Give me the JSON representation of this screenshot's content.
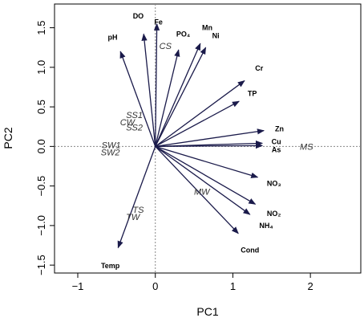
{
  "chart_data": {
    "type": "scatter",
    "title": "",
    "xlabel": "PC1",
    "ylabel": "PC2",
    "xlim": [
      -1.3,
      2.65
    ],
    "ylim": [
      -1.6,
      1.8
    ],
    "xticks": [
      -1,
      0,
      1,
      2
    ],
    "yticks": [
      -1.5,
      -1.0,
      -0.5,
      0.0,
      0.5,
      1.0,
      1.5
    ],
    "xtick_labels": [
      "−1",
      "0",
      "1",
      "2"
    ],
    "ytick_labels": [
      "−1.5",
      "−1.0",
      "−0.5",
      "0.0",
      "0.5",
      "1.0",
      "1.5"
    ],
    "grid": false,
    "reference_lines": [
      "x=0",
      "y=0"
    ],
    "arrow_color": "#1a1a4a",
    "loadings": [
      {
        "label": "DO",
        "x": -0.15,
        "y": 1.42,
        "lx": -0.22,
        "ly": 1.65
      },
      {
        "label": "Fe",
        "x": 0.02,
        "y": 1.55,
        "lx": 0.04,
        "ly": 1.57
      },
      {
        "label": "pH",
        "x": -0.45,
        "y": 1.2,
        "lx": -0.55,
        "ly": 1.38
      },
      {
        "label": "PO₄",
        "x": 0.3,
        "y": 1.22,
        "lx": 0.36,
        "ly": 1.42
      },
      {
        "label": "Mn",
        "x": 0.58,
        "y": 1.3,
        "lx": 0.67,
        "ly": 1.5
      },
      {
        "label": "Ni",
        "x": 0.65,
        "y": 1.25,
        "lx": 0.78,
        "ly": 1.4
      },
      {
        "label": "Cr",
        "x": 1.15,
        "y": 0.83,
        "lx": 1.34,
        "ly": 0.99
      },
      {
        "label": "TP",
        "x": 1.08,
        "y": 0.57,
        "lx": 1.25,
        "ly": 0.67
      },
      {
        "label": "Zn",
        "x": 1.4,
        "y": 0.2,
        "lx": 1.6,
        "ly": 0.22
      },
      {
        "label": "Cu",
        "x": 1.38,
        "y": 0.04,
        "lx": 1.56,
        "ly": 0.06
      },
      {
        "label": "As",
        "x": 1.38,
        "y": 0.01,
        "lx": 1.56,
        "ly": -0.04
      },
      {
        "label": "NO₃",
        "x": 1.32,
        "y": -0.39,
        "lx": 1.53,
        "ly": -0.47
      },
      {
        "label": "NO₂",
        "x": 1.29,
        "y": -0.73,
        "lx": 1.53,
        "ly": -0.85
      },
      {
        "label": "NH₄",
        "x": 1.22,
        "y": -0.86,
        "lx": 1.43,
        "ly": -1.0
      },
      {
        "label": "Cond",
        "x": 1.07,
        "y": -1.1,
        "lx": 1.22,
        "ly": -1.31
      },
      {
        "label": "Temp",
        "x": -0.48,
        "y": -1.28,
        "lx": -0.58,
        "ly": -1.51
      }
    ],
    "sites": [
      {
        "label": "CS",
        "x": 0.13,
        "y": 1.27
      },
      {
        "label": "SS1",
        "x": -0.27,
        "y": 0.4
      },
      {
        "label": "CW",
        "x": -0.36,
        "y": 0.31
      },
      {
        "label": "SS2",
        "x": -0.27,
        "y": 0.24
      },
      {
        "label": "SW1",
        "x": -0.57,
        "y": 0.02
      },
      {
        "label": "SW2",
        "x": -0.58,
        "y": -0.07
      },
      {
        "label": "MS",
        "x": 1.95,
        "y": 0.0
      },
      {
        "label": "MW",
        "x": 0.6,
        "y": -0.57
      },
      {
        "label": "TS",
        "x": -0.22,
        "y": -0.8
      },
      {
        "label": "TW",
        "x": -0.29,
        "y": -0.89
      }
    ]
  }
}
